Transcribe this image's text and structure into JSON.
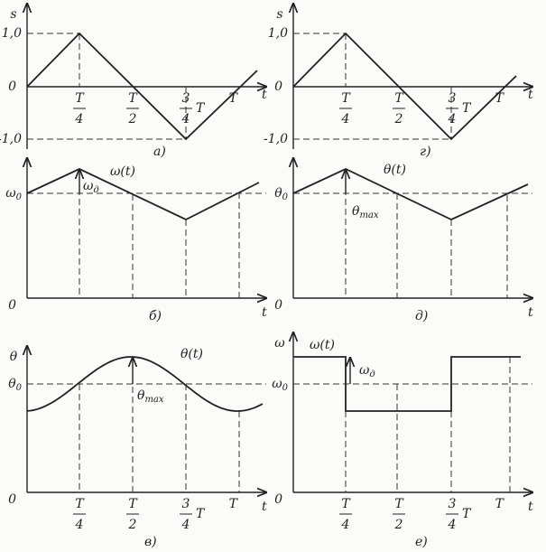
{
  "panels": [
    {
      "label": "а)",
      "y_axis": "s",
      "x_axis": "t",
      "origin": "0",
      "y_ticks": [
        "1,0",
        "-1,0"
      ],
      "x_ticks": [
        {
          "num": "T",
          "den": "4"
        },
        {
          "num": "T",
          "den": "2"
        },
        {
          "num": "3",
          "den": "4",
          "suffix": "T"
        },
        "T"
      ]
    },
    {
      "label": "г)",
      "y_axis": "s",
      "x_axis": "t",
      "origin": "0",
      "y_ticks": [
        "1,0",
        "-1,0"
      ],
      "x_ticks": [
        {
          "num": "T",
          "den": "4"
        },
        {
          "num": "T",
          "den": "2"
        },
        {
          "num": "3",
          "den": "4",
          "suffix": "T"
        },
        "T"
      ]
    },
    {
      "label": "б)",
      "x_axis": "t",
      "origin": "0",
      "y_ticks": [
        {
          "base": "ω",
          "sub": "0"
        }
      ],
      "curve_label": "ω(t)",
      "deviation_label": {
        "base": "ω",
        "sub": "д"
      }
    },
    {
      "label": "д)",
      "x_axis": "t",
      "origin": "0",
      "y_ticks": [
        {
          "base": "θ",
          "sub": "0"
        }
      ],
      "curve_label": "θ(t)",
      "deviation_label": {
        "base": "θ",
        "sub": "max"
      }
    },
    {
      "label": "в)",
      "y_axis": "θ",
      "x_axis": "t",
      "origin": "0",
      "y_ticks": [
        {
          "base": "θ",
          "sub": "0"
        }
      ],
      "curve_label": "θ(t)",
      "deviation_label": {
        "base": "θ",
        "sub": "max"
      },
      "x_ticks": [
        {
          "num": "T",
          "den": "4"
        },
        {
          "num": "T",
          "den": "2"
        },
        {
          "num": "3",
          "den": "4",
          "suffix": "T"
        },
        "T"
      ]
    },
    {
      "label": "е)",
      "y_axis": "ω",
      "x_axis": "t",
      "origin": "0",
      "y_ticks": [
        {
          "base": "ω",
          "sub": "0"
        }
      ],
      "curve_label": "ω(t)",
      "deviation_label": {
        "base": "ω",
        "sub": "д"
      },
      "x_ticks": [
        {
          "num": "T",
          "den": "4"
        },
        {
          "num": "T",
          "den": "2"
        },
        {
          "num": "3",
          "den": "4",
          "suffix": "T"
        },
        "T"
      ]
    }
  ]
}
